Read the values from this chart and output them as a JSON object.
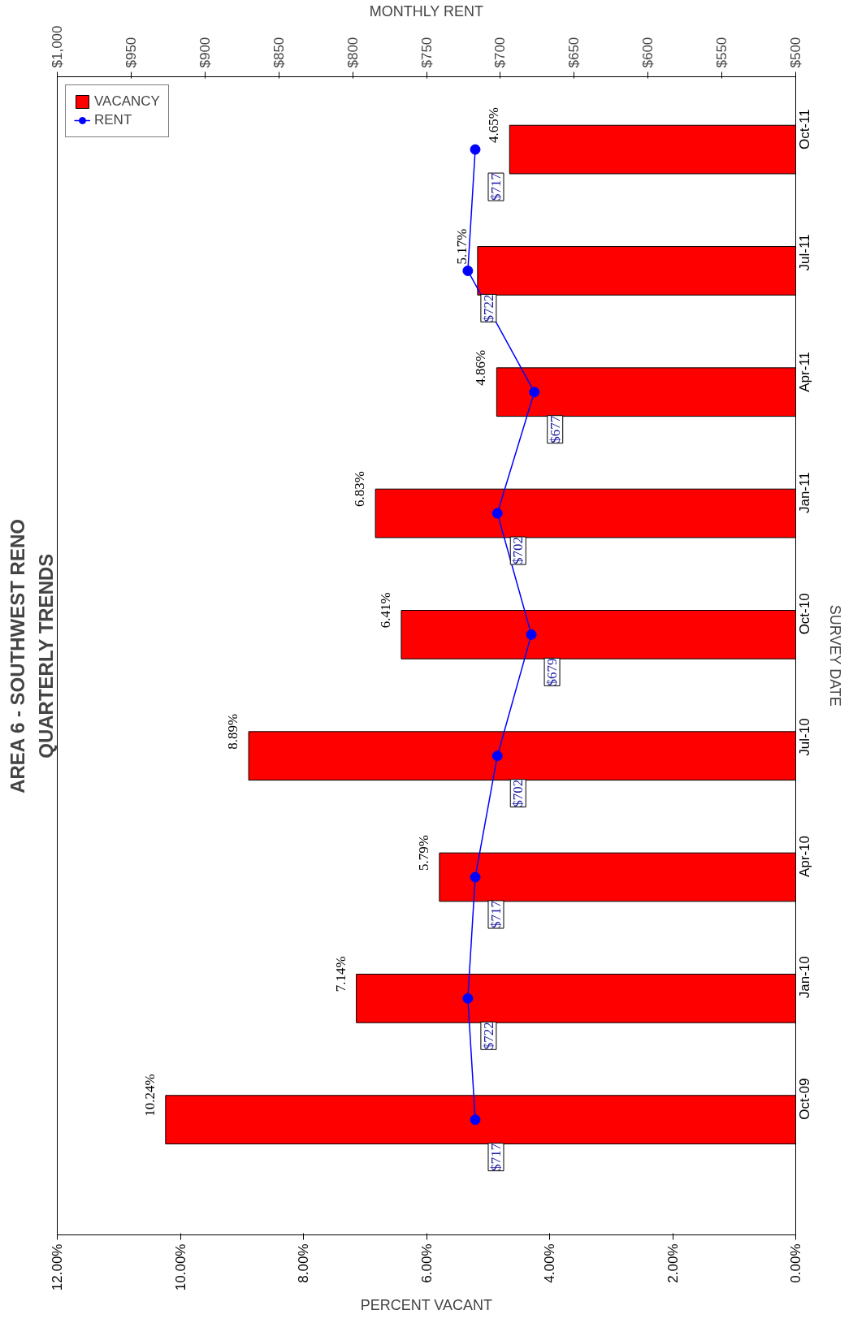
{
  "chart_data": {
    "type": "bar",
    "orientation": "horizontal",
    "title": "AREA 6 - SOUTHWEST RENO",
    "subtitle": "QUARTERLY TRENDS",
    "xlabel": "PERCENT VACANT",
    "ylabel": "SURVEY DATE",
    "x2label": "MONTHLY RENT",
    "categories": [
      "Oct-11",
      "Jul-11",
      "Apr-11",
      "Jan-11",
      "Oct-10",
      "Jul-10",
      "Apr-10",
      "Jan-10",
      "Oct-09"
    ],
    "series": [
      {
        "name": "VACANCY",
        "color": "#ff0000",
        "values": [
          4.65,
          5.17,
          4.86,
          6.83,
          6.41,
          8.89,
          5.79,
          7.14,
          10.24
        ],
        "value_labels": [
          "4.65%",
          "5.17%",
          "4.86%",
          "6.83%",
          "6.41%",
          "8.89%",
          "5.79%",
          "7.14%",
          "10.24%"
        ]
      },
      {
        "name": "RENT",
        "type": "line",
        "axis": "x2",
        "color": "#0000ff",
        "values": [
          717,
          722,
          677,
          702,
          679,
          702,
          717,
          722,
          717
        ],
        "value_labels": [
          "$717",
          "$722",
          "$677",
          "$702",
          "$679",
          "$702",
          "$717",
          "$722",
          "$717"
        ]
      }
    ],
    "xlim": [
      12,
      0
    ],
    "xticks": [
      {
        "value": 12,
        "label": "12.00%"
      },
      {
        "value": 10,
        "label": "10.00%"
      },
      {
        "value": 8,
        "label": "8.00%"
      },
      {
        "value": 6,
        "label": "6.00%"
      },
      {
        "value": 4,
        "label": "4.00%"
      },
      {
        "value": 2,
        "label": "2.00%"
      },
      {
        "value": 0,
        "label": "0.00%"
      }
    ],
    "x2lim": [
      1000,
      500
    ],
    "x2ticks": [
      {
        "value": 1000,
        "label": "$1,000"
      },
      {
        "value": 950,
        "label": "$950"
      },
      {
        "value": 900,
        "label": "$900"
      },
      {
        "value": 850,
        "label": "$850"
      },
      {
        "value": 800,
        "label": "$800"
      },
      {
        "value": 750,
        "label": "$750"
      },
      {
        "value": 700,
        "label": "$700"
      },
      {
        "value": 650,
        "label": "$650"
      },
      {
        "value": 600,
        "label": "$600"
      },
      {
        "value": 550,
        "label": "$550"
      },
      {
        "value": 500,
        "label": "$500"
      }
    ],
    "legend": "top left",
    "grid": false,
    "marker": "circle",
    "line_style": "solid"
  }
}
